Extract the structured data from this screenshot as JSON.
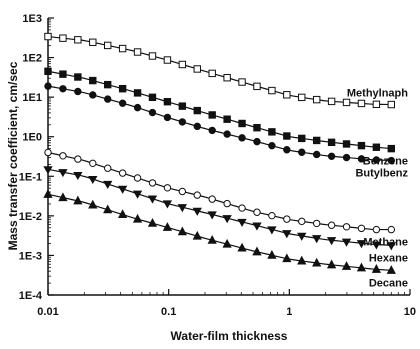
{
  "chart_data": {
    "type": "line",
    "xlabel": "Water-film thickness",
    "ylabel": "Mass transfer coefficient, cm/sec",
    "x_scale": "log",
    "y_scale": "log",
    "xlim": [
      0.01,
      10
    ],
    "ylim": [
      0.0001,
      1000
    ],
    "x_ticks": [
      {
        "value": 0.01,
        "label": "0.01"
      },
      {
        "value": 0.1,
        "label": "0.1"
      },
      {
        "value": 1,
        "label": "1"
      },
      {
        "value": 10,
        "label": "10"
      }
    ],
    "y_ticks": [
      {
        "value": 1000,
        "label": "1E3"
      },
      {
        "value": 100,
        "label": "1E2"
      },
      {
        "value": 10,
        "label": "1E1"
      },
      {
        "value": 1,
        "label": "1E0"
      },
      {
        "value": 0.1,
        "label": "1E-1"
      },
      {
        "value": 0.01,
        "label": "1E-2"
      },
      {
        "value": 0.001,
        "label": "1E-3"
      },
      {
        "value": 0.0001,
        "label": "1E-4"
      }
    ],
    "grid": false,
    "legend": "none (series labeled at line ends)",
    "series": [
      {
        "name": "Methylnaph",
        "marker": "open-square",
        "x": [
          0.01,
          0.02,
          0.05,
          0.1,
          0.2,
          0.5,
          1,
          2,
          5,
          7
        ],
        "y": [
          340,
          270,
          150,
          85,
          45,
          20,
          11,
          8,
          6.6,
          6.5
        ]
      },
      {
        "name": "Benzene",
        "marker": "filled-square",
        "x": [
          0.01,
          0.02,
          0.05,
          0.1,
          0.2,
          0.5,
          1,
          2,
          5,
          7
        ],
        "y": [
          45,
          30,
          14,
          7.5,
          4,
          1.8,
          1,
          0.75,
          0.55,
          0.5
        ]
      },
      {
        "name": "Butylbenz",
        "marker": "filled-circle",
        "x": [
          0.01,
          0.02,
          0.05,
          0.1,
          0.2,
          0.5,
          1,
          2,
          5,
          7
        ],
        "y": [
          19,
          13,
          6,
          3,
          1.6,
          0.8,
          0.45,
          0.33,
          0.26,
          0.25
        ]
      },
      {
        "name": "Methane",
        "marker": "open-circle",
        "x": [
          0.01,
          0.02,
          0.05,
          0.1,
          0.2,
          0.5,
          1,
          2,
          5,
          7
        ],
        "y": [
          0.4,
          0.25,
          0.1,
          0.05,
          0.03,
          0.013,
          0.008,
          0.006,
          0.0045,
          0.0045
        ]
      },
      {
        "name": "Hexane",
        "marker": "filled-triangle-down",
        "x": [
          0.01,
          0.02,
          0.05,
          0.1,
          0.2,
          0.5,
          1,
          2,
          5,
          7
        ],
        "y": [
          0.15,
          0.1,
          0.04,
          0.02,
          0.012,
          0.006,
          0.0035,
          0.0025,
          0.0019,
          0.0018
        ]
      },
      {
        "name": "Decane",
        "marker": "filled-triangle-up",
        "x": [
          0.01,
          0.02,
          0.05,
          0.1,
          0.2,
          0.5,
          1,
          2,
          5,
          7
        ],
        "y": [
          0.035,
          0.022,
          0.009,
          0.005,
          0.0027,
          0.0013,
          0.0008,
          0.0006,
          0.00045,
          0.00042
        ]
      }
    ],
    "colors": {
      "ink": "#111111",
      "background": "#ffffff"
    }
  }
}
